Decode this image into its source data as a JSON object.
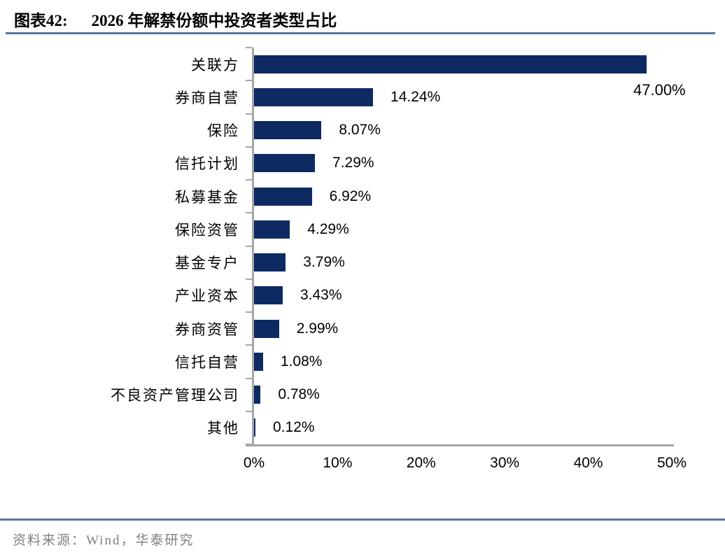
{
  "header": {
    "figure_label": "图表42:",
    "title": "2026 年解禁份额中投资者类型占比"
  },
  "chart_data": {
    "type": "bar",
    "orientation": "horizontal",
    "title": "2026 年解禁份额中投资者类型占比",
    "categories": [
      "关联方",
      "券商自营",
      "保险",
      "信托计划",
      "私募基金",
      "保险资管",
      "基金专户",
      "产业资本",
      "券商资管",
      "信托自营",
      "不良资产管理公司",
      "其他"
    ],
    "values": [
      47.0,
      14.24,
      8.07,
      7.29,
      6.92,
      4.29,
      3.79,
      3.43,
      2.99,
      1.08,
      0.78,
      0.12
    ],
    "value_labels": [
      "47.00%",
      "14.24%",
      "8.07%",
      "7.29%",
      "6.92%",
      "4.29%",
      "3.79%",
      "3.43%",
      "2.99%",
      "1.08%",
      "0.78%",
      "0.12%"
    ],
    "first_label_placement": "far-right-below-bar",
    "xlim": [
      0,
      50
    ],
    "x_tick_labels": [
      "0%",
      "10%",
      "20%",
      "30%",
      "40%",
      "50%"
    ],
    "grid": false,
    "legend": "none"
  },
  "footer": {
    "source": "资料来源：Wind，华泰研究"
  },
  "colors": {
    "bar": "#0d2a63",
    "axis": "#a6a6a6",
    "accent_line": "#54779e",
    "source_text": "#808080",
    "title_text": "#000000"
  }
}
